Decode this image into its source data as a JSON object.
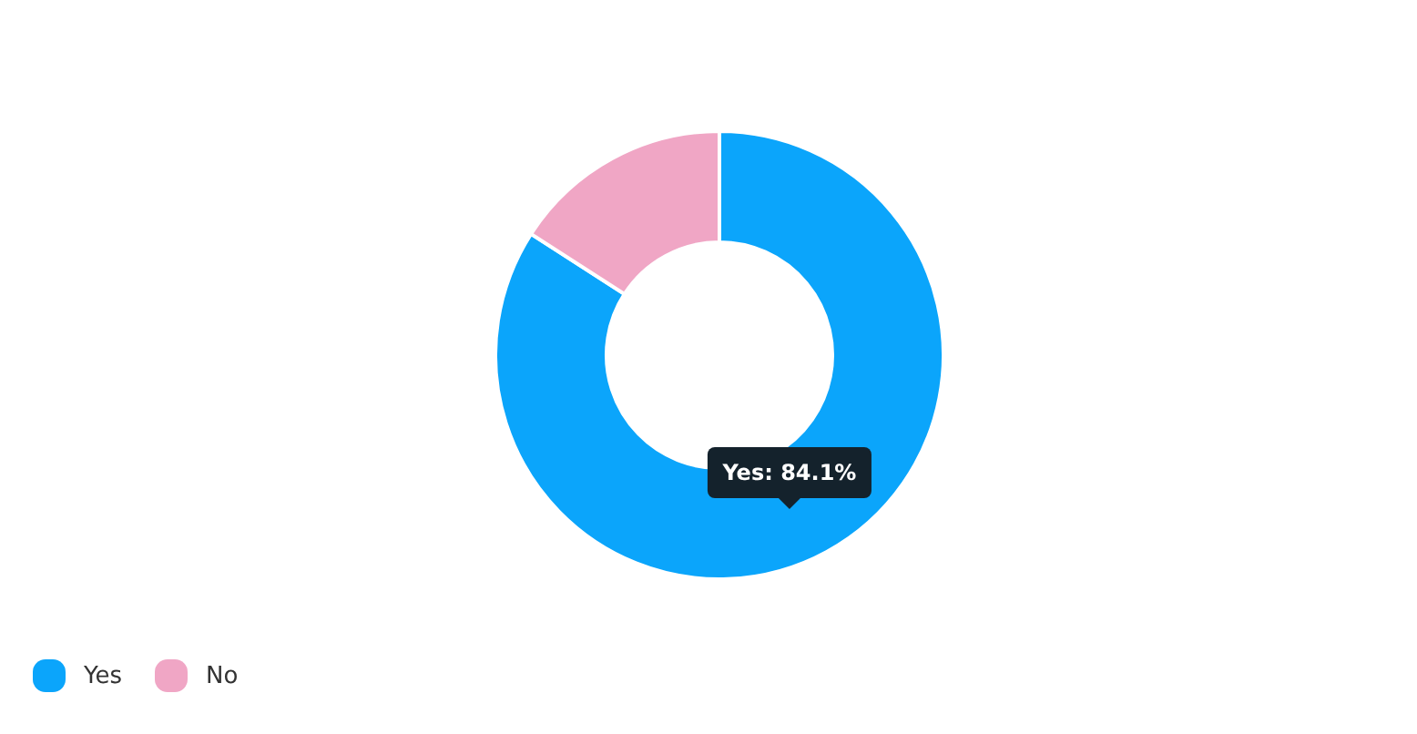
{
  "chart_data": {
    "type": "donut",
    "categories": [
      "Yes",
      "No"
    ],
    "values": [
      84.1,
      15.9
    ],
    "colors": [
      "#0ba5fb",
      "#f0a6c5"
    ],
    "value_labels": [
      "Yes: 84.1%",
      null
    ],
    "legend": "bottom left"
  }
}
